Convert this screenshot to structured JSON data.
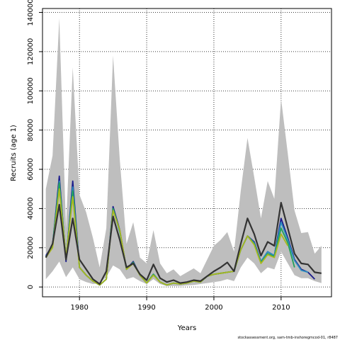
{
  "chart_data": {
    "type": "line",
    "title": "",
    "xlabel": "Years",
    "ylabel": "Recruits (age 1)",
    "xlim": [
      1974.5,
      2017.5
    ],
    "ylim": [
      -5000,
      142000
    ],
    "x_ticks": [
      1980,
      1990,
      2000,
      2010
    ],
    "x_tick_labels": [
      "1980",
      "1990",
      "2000",
      "2010"
    ],
    "y_ticks": [
      0,
      20000,
      40000,
      60000,
      80000,
      100000,
      120000,
      140000
    ],
    "y_tick_labels": [
      "0",
      "20000",
      "40000",
      "60000",
      "80000",
      "100000",
      "120000",
      "140000"
    ],
    "grid": true,
    "footer": "stockassessment.org, sam-tmb-inshoregmcod-01, r8487",
    "confidence_band": {
      "color": "#bebebe",
      "x": [
        1975,
        1976,
        1977,
        1978,
        1979,
        1980,
        1981,
        1982,
        1983,
        1984,
        1985,
        1986,
        1987,
        1988,
        1989,
        1990,
        1991,
        1992,
        1993,
        1994,
        1995,
        1996,
        1997,
        1998,
        1999,
        2000,
        2001,
        2002,
        2003,
        2004,
        2005,
        2006,
        2007,
        2008,
        2009,
        2010,
        2011,
        2012,
        2013,
        2014,
        2015,
        2016
      ],
      "lower": [
        4000,
        8000,
        13000,
        5000,
        10000,
        4000,
        2500,
        1500,
        2000,
        5000,
        11000,
        9000,
        4000,
        5000,
        3000,
        1500,
        4000,
        1500,
        500,
        500,
        500,
        800,
        1000,
        1500,
        2000,
        2500,
        3000,
        4000,
        3000,
        10000,
        15000,
        12000,
        7000,
        10000,
        9000,
        18000,
        12000,
        6000,
        4500,
        4500,
        3000,
        2000
      ],
      "upper": [
        50000,
        67000,
        137000,
        30000,
        112000,
        47000,
        38000,
        25000,
        10000,
        30000,
        118000,
        65000,
        22000,
        33000,
        15000,
        12000,
        29000,
        12000,
        7000,
        9000,
        5500,
        7500,
        9500,
        7000,
        14000,
        21000,
        24000,
        28000,
        18000,
        49000,
        76000,
        56000,
        35000,
        54000,
        45000,
        96000,
        68000,
        39000,
        27500,
        28000,
        17000,
        21000
      ]
    },
    "series": [
      {
        "color": "#333333",
        "x": [
          1975,
          1976,
          1977,
          1978,
          1979,
          1980,
          1981,
          1982,
          1983,
          1984,
          1985,
          1986,
          1987,
          1988,
          1989,
          1990,
          1991,
          1992,
          1993,
          1994,
          1995,
          1996,
          1997,
          1998,
          1999,
          2000,
          2001,
          2002,
          2003,
          2004,
          2005,
          2006,
          2007,
          2008,
          2009,
          2010,
          2011,
          2012,
          2013,
          2014,
          2015,
          2016
        ],
        "values": [
          15000,
          22000,
          42000,
          14000,
          35000,
          14000,
          9000,
          4000,
          1500,
          8000,
          36000,
          24000,
          10000,
          12000,
          6500,
          3500,
          11500,
          4500,
          2500,
          3500,
          2000,
          2500,
          3500,
          3000,
          5500,
          8000,
          10000,
          12500,
          8000,
          22000,
          35000,
          27000,
          16000,
          23000,
          21000,
          43000,
          30000,
          17000,
          12000,
          11500,
          7500,
          7000
        ]
      },
      {
        "color": "#1a1a8c",
        "x": [
          1975,
          1976,
          1977,
          1978,
          1979,
          1980,
          1981,
          1982,
          1983,
          1984,
          1985,
          1986,
          1987,
          1988,
          1989,
          1990,
          1991,
          1992,
          1993,
          1994,
          1995,
          1996,
          1997,
          1998,
          1999,
          2000,
          2001,
          2002,
          2003,
          2004,
          2005,
          2006,
          2007,
          2008,
          2009,
          2010,
          2011,
          2012,
          2013,
          2014,
          2015
        ],
        "values": [
          16000,
          21000,
          56500,
          13000,
          54000,
          10000,
          6000,
          3000,
          1000,
          4000,
          41000,
          29000,
          9000,
          13000,
          6000,
          2000,
          6500,
          2500,
          1000,
          2000,
          1500,
          2000,
          3000,
          2500,
          5500,
          6500,
          7000,
          7500,
          8000,
          19000,
          26000,
          23000,
          13000,
          18000,
          16000,
          35000,
          25000,
          14000,
          9000,
          7500,
          4000
        ]
      },
      {
        "color": "#2e8fbf",
        "x": [
          1975,
          1976,
          1977,
          1978,
          1979,
          1980,
          1981,
          1982,
          1983,
          1984,
          1985,
          1986,
          1987,
          1988,
          1989,
          1990,
          1991,
          1992,
          1993,
          1994,
          1995,
          1996,
          1997,
          1998,
          1999,
          2000,
          2001,
          2002,
          2003,
          2004,
          2005,
          2006,
          2007,
          2008,
          2009,
          2010,
          2011,
          2012,
          2013,
          2014
        ],
        "values": [
          15500,
          21000,
          54000,
          14000,
          51000,
          10000,
          6000,
          3000,
          1000,
          4000,
          40000,
          28000,
          9000,
          12500,
          6000,
          2000,
          6500,
          2500,
          1000,
          2000,
          1500,
          2000,
          3000,
          2500,
          5500,
          6500,
          7000,
          7500,
          8000,
          19000,
          26000,
          22500,
          13000,
          18000,
          16000,
          33000,
          24000,
          13500,
          8500,
          7500
        ]
      },
      {
        "color": "#22a15a",
        "x": [
          1975,
          1976,
          1977,
          1978,
          1979,
          1980,
          1981,
          1982,
          1983,
          1984,
          1985,
          1986,
          1987,
          1988,
          1989,
          1990,
          1991,
          1992,
          1993,
          1994,
          1995,
          1996,
          1997,
          1998,
          1999,
          2000,
          2001,
          2002,
          2003,
          2004,
          2005,
          2006,
          2007,
          2008,
          2009,
          2010,
          2011,
          2012
        ],
        "values": [
          15000,
          21000,
          53000,
          14500,
          49000,
          10000,
          6000,
          3000,
          1000,
          4000,
          40000,
          28500,
          9000,
          12500,
          6000,
          2000,
          6500,
          2500,
          1000,
          2000,
          1500,
          2000,
          3000,
          2500,
          5500,
          6500,
          7000,
          7500,
          8000,
          19000,
          26000,
          22000,
          12500,
          17000,
          15500,
          30000,
          22500,
          10000
        ]
      },
      {
        "color": "#a8b820",
        "x": [
          1975,
          1976,
          1977,
          1978,
          1979,
          1980,
          1981,
          1982,
          1983,
          1984,
          1985,
          1986,
          1987,
          1988,
          1989,
          1990,
          1991,
          1992,
          1993,
          1994,
          1995,
          1996,
          1997,
          1998,
          1999,
          2000,
          2001,
          2002,
          2003,
          2004,
          2005,
          2006,
          2007,
          2008,
          2009,
          2010,
          2011
        ],
        "values": [
          15000,
          20000,
          50000,
          15000,
          46000,
          10000,
          6000,
          3000,
          1000,
          4000,
          39000,
          29000,
          9000,
          12000,
          6000,
          2000,
          6000,
          2500,
          1000,
          2000,
          1500,
          2000,
          3000,
          2500,
          5500,
          6500,
          7000,
          7500,
          8000,
          19000,
          26000,
          21500,
          12000,
          16500,
          15000,
          27000,
          21000
        ]
      }
    ]
  }
}
